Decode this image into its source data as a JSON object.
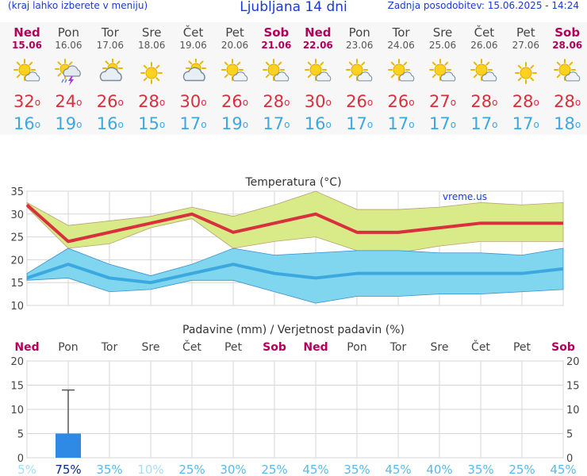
{
  "header": {
    "left_note": "(kraj lahko izberete v meniju)",
    "title": "Ljubljana 14 dni",
    "updated": "Zadnja posodobitev: 15.06.2025 - 14:24"
  },
  "days": [
    {
      "name": "Ned",
      "date": "15.06",
      "weekend": true,
      "icon": "sun-cloud-icon",
      "max": "32",
      "min": "16"
    },
    {
      "name": "Pon",
      "date": "16.06",
      "weekend": false,
      "icon": "thunderstorm-icon",
      "max": "24",
      "min": "19"
    },
    {
      "name": "Tor",
      "date": "17.06",
      "weekend": false,
      "icon": "cloudy-sun-icon",
      "max": "26",
      "min": "16"
    },
    {
      "name": "Sre",
      "date": "18.06",
      "weekend": false,
      "icon": "sunny-icon",
      "max": "28",
      "min": "15"
    },
    {
      "name": "Čet",
      "date": "19.06",
      "weekend": false,
      "icon": "cloudy-sun-icon",
      "max": "30",
      "min": "17"
    },
    {
      "name": "Pet",
      "date": "20.06",
      "weekend": false,
      "icon": "sun-cloud-icon",
      "max": "26",
      "min": "19"
    },
    {
      "name": "Sob",
      "date": "21.06",
      "weekend": true,
      "icon": "sun-cloud-icon",
      "max": "28",
      "min": "17"
    },
    {
      "name": "Ned",
      "date": "22.06",
      "weekend": true,
      "icon": "sun-cloud-icon",
      "max": "30",
      "min": "16"
    },
    {
      "name": "Pon",
      "date": "23.06",
      "weekend": false,
      "icon": "sun-cloud-icon",
      "max": "26",
      "min": "17"
    },
    {
      "name": "Tor",
      "date": "24.06",
      "weekend": false,
      "icon": "sun-cloud-icon",
      "max": "26",
      "min": "17"
    },
    {
      "name": "Sre",
      "date": "25.06",
      "weekend": false,
      "icon": "sun-cloud-icon",
      "max": "27",
      "min": "17"
    },
    {
      "name": "Čet",
      "date": "26.06",
      "weekend": false,
      "icon": "sun-cloud-icon",
      "max": "28",
      "min": "17"
    },
    {
      "name": "Pet",
      "date": "27.06",
      "weekend": false,
      "icon": "sunny-icon",
      "max": "28",
      "min": "17"
    },
    {
      "name": "Sob",
      "date": "28.06",
      "weekend": true,
      "icon": "sun-cloud-icon",
      "max": "28",
      "min": "18"
    }
  ],
  "chart_data": [
    {
      "type": "line",
      "title": "Temperatura (°C)",
      "watermark": "vreme.us",
      "ylim": [
        10,
        35
      ],
      "yticks": [
        "10",
        "15",
        "20",
        "25",
        "30",
        "35"
      ],
      "series": [
        {
          "name": "max",
          "color": "#d8303c",
          "values": [
            32,
            24,
            26,
            28,
            30,
            26,
            28,
            30,
            26,
            26,
            27,
            28,
            28,
            28
          ]
        },
        {
          "name": "max_band_upper",
          "color": "#d9ea88",
          "values": [
            32.5,
            27.5,
            28.5,
            29.5,
            31.5,
            29.5,
            32,
            35,
            31,
            31,
            31.5,
            32.5,
            32,
            32.5
          ]
        },
        {
          "name": "max_band_lower",
          "color": "#d9ea88",
          "values": [
            31.5,
            22.5,
            23.5,
            27,
            29,
            22.5,
            24,
            25,
            22,
            21.5,
            23,
            24,
            24,
            24
          ]
        },
        {
          "name": "min",
          "color": "#3ca8e0",
          "values": [
            16,
            19,
            16,
            15,
            17,
            19,
            17,
            16,
            17,
            17,
            17,
            17,
            17,
            18
          ]
        },
        {
          "name": "min_band_upper",
          "color": "#7fd6ee",
          "values": [
            17,
            22.5,
            19,
            16.5,
            19,
            22.5,
            21,
            21.5,
            22,
            22,
            21.5,
            21.5,
            21,
            22.5
          ]
        },
        {
          "name": "min_band_lower",
          "color": "#7fd6ee",
          "values": [
            15.5,
            16,
            13,
            13.5,
            15.5,
            15.5,
            13,
            10.5,
            12,
            12,
            12.5,
            12.5,
            13,
            13.5
          ]
        }
      ]
    },
    {
      "type": "bar",
      "title": "Padavine (mm) / Verjetnost padavin (%)",
      "ylim": [
        0,
        20
      ],
      "yticks": [
        "0",
        "5",
        "10",
        "15",
        "20"
      ],
      "categories": [
        "Ned",
        "Pon",
        "Tor",
        "Sre",
        "Čet",
        "Pet",
        "Sob",
        "Ned",
        "Pon",
        "Tor",
        "Sre",
        "Čet",
        "Pet",
        "Sob"
      ],
      "weekend": [
        true,
        false,
        false,
        false,
        false,
        false,
        true,
        true,
        false,
        false,
        false,
        false,
        false,
        true
      ],
      "values": [
        0,
        5,
        0,
        0,
        0,
        0,
        0,
        0,
        0,
        0,
        0,
        0,
        0,
        0
      ],
      "error_max": [
        0,
        14,
        0,
        0,
        0,
        0,
        0,
        0,
        0,
        0,
        0,
        0,
        0,
        0
      ],
      "probability": [
        "5%",
        "75%",
        "35%",
        "10%",
        "25%",
        "30%",
        "25%",
        "45%",
        "35%",
        "45%",
        "40%",
        "35%",
        "25%",
        "45%"
      ],
      "probability_values": [
        5,
        75,
        35,
        10,
        25,
        30,
        25,
        45,
        35,
        45,
        40,
        35,
        25,
        45
      ]
    }
  ],
  "colors": {
    "header_blue": "#1a3bd6",
    "weekend": "#b0005a",
    "bar": "#2f8ae6",
    "grid": "#d0d0d0"
  }
}
